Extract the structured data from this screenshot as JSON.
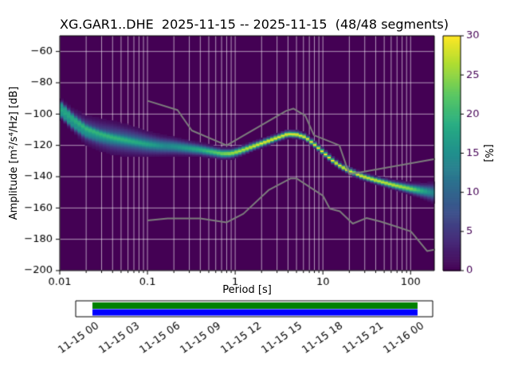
{
  "chart_data": {
    "type": "heatmap",
    "title": "XG.GAR1..DHE  2025-11-15 -- 2025-11-15  (48/48 segments)",
    "xlabel": "Period [s]",
    "ylabel": "Amplitude [m²/s⁴/Hz] [dB]",
    "xscale": "log",
    "xlim_log10": [
      -2,
      2.27
    ],
    "ylim": [
      -200,
      -50
    ],
    "xticks_log10": [
      -2,
      -1,
      0,
      1,
      2
    ],
    "xtick_labels": [
      "0.01",
      "0.1",
      "1",
      "10",
      "100"
    ],
    "yticks": [
      -200,
      -180,
      -160,
      -140,
      -120,
      -100,
      -80,
      -60
    ],
    "ytick_labels": [
      "−200",
      "−180",
      "−160",
      "−140",
      "−120",
      "−100",
      "−80",
      "−60"
    ],
    "grid": true,
    "colorbar": {
      "label": "[%]",
      "min": 0,
      "max": 30,
      "ticks": [
        0,
        5,
        10,
        15,
        20,
        25,
        30
      ],
      "colormap": "viridis"
    },
    "colors": {
      "background": "#440154",
      "grid": "rgba(255,255,255,0.75)",
      "noise_model": "#7d7d7d"
    },
    "psd_ridge": {
      "logp": [
        -2.0,
        -1.85,
        -1.7,
        -1.55,
        -1.4,
        -1.25,
        -1.1,
        -1.0,
        -0.85,
        -0.7,
        -0.55,
        -0.4,
        -0.25,
        -0.15,
        -0.05,
        0.05,
        0.15,
        0.3,
        0.45,
        0.6,
        0.7,
        0.8,
        0.9,
        1.0,
        1.1,
        1.2,
        1.3,
        1.45,
        1.6,
        1.8,
        2.0,
        2.15,
        2.27
      ],
      "db": [
        -96,
        -104,
        -110,
        -113,
        -115,
        -116.5,
        -118,
        -119,
        -120,
        -120.5,
        -121.5,
        -122.5,
        -124,
        -125,
        -125,
        -123.5,
        -121.5,
        -118.5,
        -115.5,
        -112.5,
        -112.8,
        -114.5,
        -119,
        -124,
        -129,
        -133,
        -136,
        -139.5,
        -142,
        -145,
        -147.5,
        -149,
        -150
      ],
      "peak_percent": [
        9,
        9,
        9,
        9,
        10,
        11,
        12,
        13,
        14,
        15,
        17,
        19,
        22,
        24,
        26,
        27,
        28,
        30,
        30,
        30,
        30,
        30,
        30,
        30,
        30,
        30,
        30,
        30,
        29,
        28,
        25,
        18,
        13
      ],
      "sigma_db": [
        2.8,
        3.6,
        4.4,
        4.8,
        5.0,
        4.6,
        4.0,
        3.6,
        3.0,
        2.6,
        2.2,
        1.9,
        1.7,
        1.6,
        1.5,
        1.4,
        1.3,
        1.2,
        1.15,
        1.1,
        1.1,
        1.05,
        1.0,
        1.0,
        1.0,
        1.0,
        1.0,
        1.05,
        1.1,
        1.25,
        1.6,
        2.2,
        3.0
      ]
    },
    "strands": {
      "fade_range_logp": [
        -2.05,
        -0.8
      ],
      "offsets_db": [
        -6.5,
        -4,
        -1.5,
        1,
        3.5,
        6
      ],
      "peak_percent": 5.5,
      "sigma_db": 1.2
    },
    "noise_models": {
      "high": {
        "periods": [
          0.1,
          0.22,
          0.32,
          0.8,
          3.8,
          4.6,
          6.3,
          7.9,
          15.4,
          20.0,
          190
        ],
        "db": [
          -91.5,
          -97.4,
          -110.5,
          -120.0,
          -98.0,
          -96.5,
          -101.0,
          -113.5,
          -120.0,
          -138.5,
          -128.7
        ]
      },
      "low": {
        "periods": [
          0.1,
          0.17,
          0.4,
          0.8,
          1.24,
          2.4,
          4.3,
          5.0,
          6.0,
          10.0,
          12.0,
          15.6,
          21.9,
          31.6,
          45.0,
          70.0,
          101.0,
          154.0,
          190
        ],
        "db": [
          -168.0,
          -166.7,
          -166.7,
          -169.2,
          -163.7,
          -148.6,
          -141.1,
          -141.1,
          -144.0,
          -152.1,
          -160.5,
          -162.1,
          -170.0,
          -166.4,
          -168.6,
          -172.0,
          -175.0,
          -187.5,
          -186.5
        ]
      }
    }
  },
  "timeline": {
    "start_hour": 0,
    "end_hour": 24,
    "tick_hours": [
      0,
      3,
      6,
      9,
      12,
      15,
      18,
      21,
      24
    ],
    "tick_labels": [
      "11-15 00",
      "11-15 03",
      "11-15 06",
      "11-15 09",
      "11-15 12",
      "11-15 15",
      "11-15 18",
      "11-15 21",
      "11-16 00"
    ],
    "coverage_color": "#008000",
    "segment_color": "#0000ff"
  }
}
